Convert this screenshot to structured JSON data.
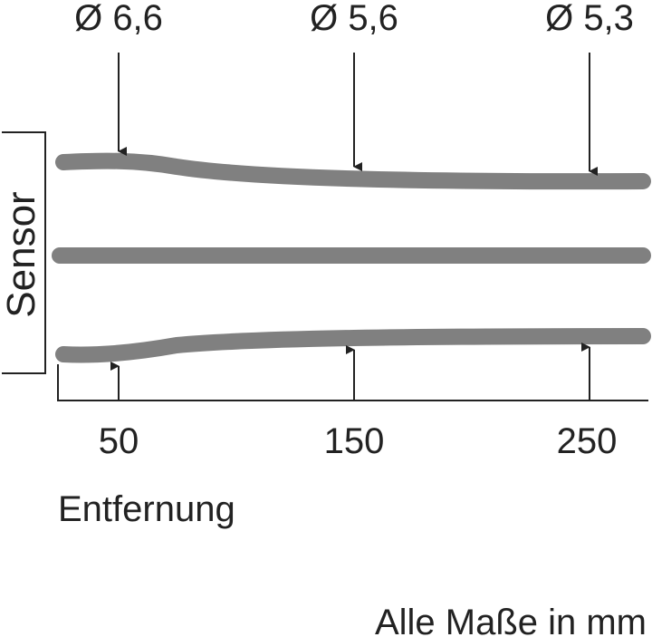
{
  "diameters": [
    {
      "symbol": "Ø",
      "value": "6,6",
      "distance": 50
    },
    {
      "symbol": "Ø",
      "value": "5,6",
      "distance": 150
    },
    {
      "symbol": "Ø",
      "value": "5,3",
      "distance": 250
    }
  ],
  "axis": {
    "ticks": [
      "50",
      "150",
      "250"
    ],
    "label": "Entfernung"
  },
  "sensor_label": "Sensor",
  "units_note": "Alle Maße in mm",
  "colors": {
    "beam": "#808080",
    "ink": "#222222"
  }
}
